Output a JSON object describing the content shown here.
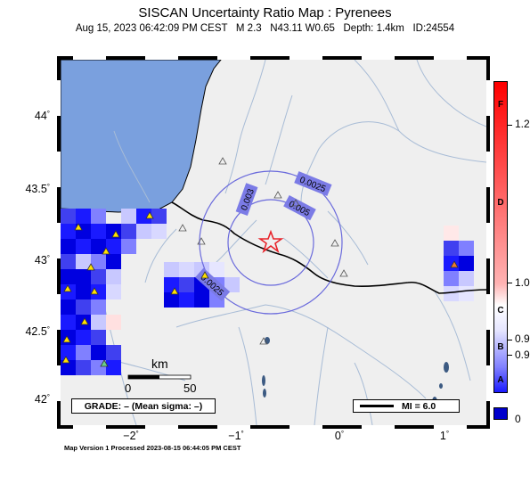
{
  "header": {
    "title": "SISCAN Uncertainty Ratio Map : Pyrenees",
    "subtitle": "Aug 15, 2023 06:42:09 PM CEST   M 2.3   N43.11 W0.65   Depth: 1.4km   ID:24554"
  },
  "axes": {
    "lat_ticks": [
      "44",
      "43.5",
      "43",
      "42.5",
      "42"
    ],
    "lon_ticks": [
      "−2",
      "−1",
      "0",
      "1"
    ],
    "lat_range": [
      41.9,
      44.45
    ],
    "lon_range": [
      -2.65,
      1.35
    ],
    "degree_mark": "°"
  },
  "epicenter": {
    "lat": 43.11,
    "lon": -0.65,
    "symbol": "star-icon",
    "color": "#e8232a"
  },
  "contours": [
    {
      "label": "0.005",
      "color": "#6a6adc"
    },
    {
      "label": "0.0025",
      "color": "#6a6adc"
    },
    {
      "label": "0.003",
      "color": "#6a6adc"
    },
    {
      "label": "0.0025",
      "color": "#6a6adc"
    }
  ],
  "scale_bar": {
    "unit": "km",
    "start": "0",
    "end": "50"
  },
  "grade_box": {
    "text": "GRADE: – (Mean sigma: –)"
  },
  "mi_box": {
    "text": "MI = 6.0"
  },
  "colorbar": {
    "letters": [
      "F",
      "D",
      "C",
      "B",
      "A"
    ],
    "values": [
      "1.2",
      "1.0",
      "0.9",
      "0.9",
      "0"
    ],
    "colors": {
      "high": "#ff0000",
      "mid": "#ffffff",
      "low": "#1a1aff",
      "zero": "#0000cc"
    }
  },
  "colors": {
    "sea": "#7aa0de",
    "land": "#efefef",
    "border": "#000000",
    "rivers": "#a8bcd6",
    "station_yellow": "#ffe000",
    "station_orange": "#f07a2a",
    "station_green": "#6ad08a"
  },
  "footer": {
    "text": "Map Version 1 Processed 2023-08-15 06:44:05 PM CEST"
  }
}
